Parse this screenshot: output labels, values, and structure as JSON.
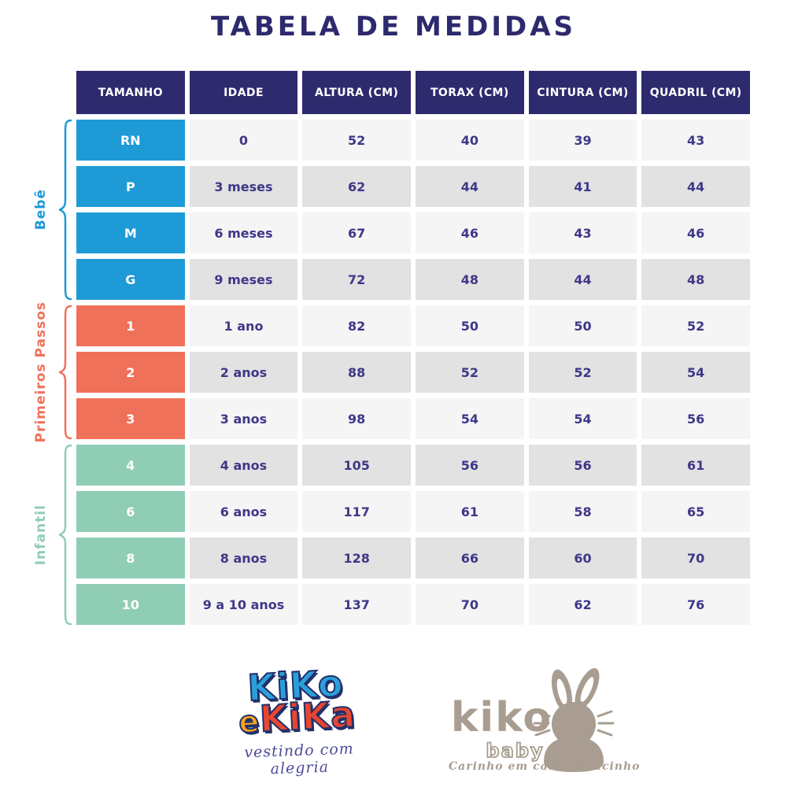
{
  "title": "TABELA DE MEDIDAS",
  "table": {
    "headers": [
      "TAMANHO",
      "IDADE",
      "ALTURA (CM)",
      "TORAX (CM)",
      "CINTURA (CM)",
      "QUADRIL (CM)"
    ],
    "groups": [
      {
        "label": "Bebê",
        "color": "#1E9AD6",
        "rows": [
          {
            "size": "RN",
            "age": "0",
            "height_cm": "52",
            "chest_cm": "40",
            "waist_cm": "39",
            "hip_cm": "43"
          },
          {
            "size": "P",
            "age": "3 meses",
            "height_cm": "62",
            "chest_cm": "44",
            "waist_cm": "41",
            "hip_cm": "44"
          },
          {
            "size": "M",
            "age": "6 meses",
            "height_cm": "67",
            "chest_cm": "46",
            "waist_cm": "43",
            "hip_cm": "46"
          },
          {
            "size": "G",
            "age": "9 meses",
            "height_cm": "72",
            "chest_cm": "48",
            "waist_cm": "44",
            "hip_cm": "48"
          }
        ]
      },
      {
        "label": "Primeiros Passos",
        "color": "#EF7159",
        "rows": [
          {
            "size": "1",
            "age": "1 ano",
            "height_cm": "82",
            "chest_cm": "50",
            "waist_cm": "50",
            "hip_cm": "52"
          },
          {
            "size": "2",
            "age": "2 anos",
            "height_cm": "88",
            "chest_cm": "52",
            "waist_cm": "52",
            "hip_cm": "54"
          },
          {
            "size": "3",
            "age": "3 anos",
            "height_cm": "98",
            "chest_cm": "54",
            "waist_cm": "54",
            "hip_cm": "56"
          }
        ]
      },
      {
        "label": "Infantil",
        "color": "#90CDB5",
        "rows": [
          {
            "size": "4",
            "age": "4 anos",
            "height_cm": "105",
            "chest_cm": "56",
            "waist_cm": "56",
            "hip_cm": "61"
          },
          {
            "size": "6",
            "age": "6 anos",
            "height_cm": "117",
            "chest_cm": "61",
            "waist_cm": "58",
            "hip_cm": "65"
          },
          {
            "size": "8",
            "age": "8 anos",
            "height_cm": "128",
            "chest_cm": "66",
            "waist_cm": "60",
            "hip_cm": "70"
          },
          {
            "size": "10",
            "age": "9 a 10 anos",
            "height_cm": "137",
            "chest_cm": "70",
            "waist_cm": "62",
            "hip_cm": "76"
          }
        ]
      }
    ]
  },
  "logos": {
    "kiko_e_kika": {
      "line1": "KiKo",
      "e": "e",
      "line2": "KiKa",
      "tagline": "vestindo com alegria"
    },
    "kiko_baby": {
      "name": "kiko",
      "sub": "baby",
      "tagline": "Carinho em cada pedacinho"
    }
  },
  "colors": {
    "navy": "#2E2A6E",
    "cell_text": "#3F3787",
    "row_light": "#F5F5F6",
    "row_dark": "#E2E2E3",
    "bebe": "#1E9AD6",
    "primeiros_passos": "#EF7159",
    "infantil": "#90CDB5",
    "taupe": "#A89D90",
    "kiko_blue": "#2B9FD9",
    "logo_navy": "#21306B",
    "e_yellow": "#F9A51C",
    "kika_red": "#E8462F",
    "script_purple": "#4C4C9B"
  }
}
